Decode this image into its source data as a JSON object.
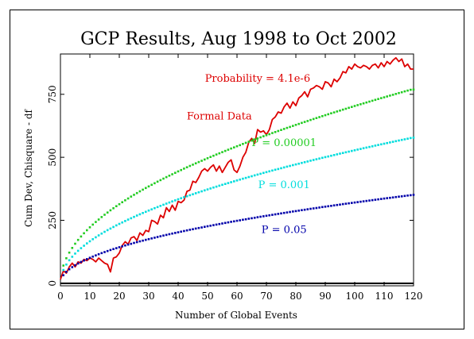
{
  "chart_data": {
    "type": "line",
    "title": "GCP Results, Aug 1998 to Oct 2002",
    "xlabel": "Number of Global Events",
    "ylabel": "Cum Dev, Chisquare - df",
    "xlim": [
      0,
      120
    ],
    "ylim": [
      -10,
      910
    ],
    "x_ticks": [
      0,
      10,
      20,
      30,
      40,
      50,
      60,
      70,
      80,
      90,
      100,
      110,
      120
    ],
    "y_ticks": [
      0,
      250,
      500,
      750
    ],
    "grid": false,
    "annotations": [
      {
        "text": "Probability = 4.1e-6",
        "color": "#dd0000",
        "x": 67,
        "y": 800
      },
      {
        "text": "Formal Data",
        "color": "#dd0000",
        "x": 54,
        "y": 650
      },
      {
        "text": "P = 0.00001",
        "color": "#22cc22",
        "x": 76,
        "y": 545
      },
      {
        "text": "P = 0.001",
        "color": "#00dddd",
        "x": 76,
        "y": 378
      },
      {
        "text": "P = 0.05",
        "color": "#0000aa",
        "x": 76,
        "y": 200
      }
    ],
    "series": [
      {
        "label_ref": "Formal Data",
        "style": "line",
        "color": "#dd0000",
        "x": [
          0,
          1,
          2,
          3,
          4,
          5,
          6,
          7,
          8,
          9,
          10,
          11,
          12,
          13,
          14,
          15,
          16,
          17,
          18,
          19,
          20,
          21,
          22,
          23,
          24,
          25,
          26,
          27,
          28,
          29,
          30,
          31,
          32,
          33,
          34,
          35,
          36,
          37,
          38,
          39,
          40,
          41,
          42,
          43,
          44,
          45,
          46,
          47,
          48,
          49,
          50,
          51,
          52,
          53,
          54,
          55,
          56,
          57,
          58,
          59,
          60,
          61,
          62,
          63,
          64,
          65,
          66,
          67,
          68,
          69,
          70,
          71,
          72,
          73,
          74,
          75,
          76,
          77,
          78,
          79,
          80,
          81,
          82,
          83,
          84,
          85,
          86,
          87,
          88,
          89,
          90,
          91,
          92,
          93,
          94,
          95,
          96,
          97,
          98,
          99,
          100,
          101,
          102,
          103,
          104,
          105,
          106,
          107,
          108,
          109,
          110,
          111,
          112,
          113,
          114,
          115,
          116,
          117,
          118,
          119,
          120
        ],
        "values": [
          15,
          50,
          40,
          65,
          80,
          65,
          85,
          80,
          95,
          90,
          100,
          95,
          85,
          100,
          90,
          80,
          75,
          45,
          100,
          105,
          120,
          150,
          165,
          155,
          180,
          185,
          170,
          200,
          190,
          210,
          205,
          250,
          245,
          235,
          270,
          260,
          300,
          285,
          310,
          290,
          325,
          320,
          330,
          365,
          370,
          405,
          400,
          420,
          445,
          455,
          445,
          460,
          470,
          445,
          465,
          440,
          460,
          480,
          490,
          450,
          440,
          465,
          500,
          520,
          560,
          575,
          555,
          610,
          600,
          605,
          590,
          610,
          650,
          660,
          680,
          675,
          700,
          715,
          695,
          720,
          705,
          735,
          745,
          760,
          740,
          770,
          775,
          785,
          780,
          770,
          800,
          795,
          780,
          810,
          800,
          815,
          840,
          835,
          860,
          850,
          870,
          860,
          855,
          865,
          860,
          850,
          865,
          870,
          855,
          875,
          860,
          880,
          870,
          885,
          895,
          880,
          890,
          860,
          870,
          850,
          850
        ]
      },
      {
        "label_ref": "P = 0.00001",
        "style": "dotted",
        "color": "#22cc22",
        "expected_curve": {
          "x_start": 1,
          "x_end": 120,
          "x_step": 1
        },
        "values": [
          70.2,
          99.3,
          121.6,
          140.4,
          157.0,
          172.0,
          185.8,
          198.6,
          210.7,
          222.1,
          232.9,
          243.2,
          253.1,
          262.7,
          271.9,
          280.8,
          289.5,
          297.9,
          306.0,
          314.0,
          321.7,
          329.3,
          336.7,
          344.0,
          351.1,
          358.0,
          364.8,
          371.5,
          378.1,
          384.6,
          390.9,
          397.2,
          403.3,
          409.4,
          415.3,
          421.2,
          427.0,
          432.7,
          438.4,
          444.0,
          449.5,
          454.9,
          460.3,
          465.6,
          470.9,
          476.1,
          481.2,
          486.3,
          491.4,
          496.4,
          501.3,
          506.2,
          511.1,
          515.9,
          520.7,
          525.4,
          530.1,
          534.7,
          539.3,
          543.9,
          548.4,
          552.9,
          557.4,
          561.8,
          566.2,
          570.6,
          574.9,
          579.2,
          583.5,
          587.7,
          591.9,
          596.1,
          600.2,
          604.4,
          608.5,
          612.5,
          616.6,
          620.6,
          624.6,
          628.6,
          632.5,
          636.4,
          640.3,
          644.2,
          648.1,
          651.9,
          655.7,
          659.5,
          663.3,
          667.0,
          670.8,
          674.5,
          678.2,
          681.8,
          685.5,
          689.1,
          692.7,
          696.3,
          699.9,
          703.5,
          707.0,
          710.5,
          714.0,
          717.5,
          721.0,
          724.5,
          727.9,
          731.3,
          734.7,
          738.1,
          741.5,
          744.9,
          748.2,
          751.6,
          754.9,
          758.2,
          761.5,
          764.8,
          768.0,
          769.0
        ]
      },
      {
        "label_ref": "P = 0.001",
        "style": "dotted",
        "color": "#00dddd",
        "expected_curve": {
          "x_start": 1,
          "x_end": 120,
          "x_step": 1
        },
        "values": [
          52.7,
          74.5,
          91.3,
          105.4,
          117.8,
          129.1,
          139.4,
          149.0,
          158.1,
          166.6,
          174.8,
          182.5,
          190.0,
          197.2,
          204.1,
          210.8,
          217.3,
          223.6,
          229.7,
          235.7,
          241.5,
          247.1,
          252.7,
          258.1,
          263.5,
          268.7,
          273.8,
          278.8,
          283.8,
          288.6,
          293.4,
          298.1,
          302.7,
          307.3,
          311.8,
          316.2,
          320.5,
          324.8,
          329.1,
          333.3,
          337.4,
          341.5,
          345.5,
          349.5,
          353.4,
          357.3,
          361.2,
          365.0,
          368.8,
          372.5,
          376.2,
          379.9,
          383.6,
          387.2,
          390.7,
          394.3,
          397.8,
          401.3,
          404.7,
          408.2,
          411.6,
          414.9,
          418.3,
          421.6,
          424.9,
          428.2,
          431.4,
          434.7,
          437.9,
          441.1,
          444.2,
          447.4,
          450.5,
          453.6,
          456.7,
          459.7,
          462.8,
          465.8,
          468.8,
          471.8,
          474.7,
          477.7,
          480.6,
          483.5,
          486.4,
          489.3,
          492.1,
          495.0,
          497.8,
          500.6,
          503.4,
          506.2,
          509.0,
          511.7,
          514.5,
          517.2,
          519.9,
          522.6,
          525.3,
          527.9,
          530.6,
          533.2,
          535.9,
          538.5,
          541.1,
          543.7,
          546.3,
          548.8,
          551.4,
          553.9,
          556.5,
          559.0,
          561.5,
          564.0,
          566.5,
          569.0,
          571.4,
          573.9,
          576.4,
          578.0
        ]
      },
      {
        "label_ref": "P = 0.05",
        "style": "dotted",
        "color": "#0000aa",
        "expected_curve": {
          "x_start": 1,
          "x_end": 120,
          "x_step": 1
        },
        "values": [
          32.0,
          45.3,
          55.4,
          64.0,
          71.6,
          78.4,
          84.7,
          90.5,
          96.0,
          101.2,
          106.1,
          110.8,
          115.4,
          119.8,
          124.0,
          128.0,
          132.0,
          135.8,
          139.5,
          143.1,
          146.7,
          150.1,
          153.5,
          156.8,
          160.0,
          163.2,
          166.3,
          169.3,
          172.3,
          175.3,
          178.2,
          181.0,
          183.9,
          186.6,
          189.4,
          192.0,
          194.7,
          197.3,
          199.9,
          202.4,
          204.9,
          207.4,
          209.9,
          212.3,
          214.7,
          217.1,
          219.4,
          221.7,
          224.0,
          226.3,
          228.6,
          230.8,
          233.0,
          235.2,
          237.4,
          239.5,
          241.7,
          243.8,
          245.9,
          248.0,
          250.0,
          252.1,
          254.1,
          256.1,
          258.1,
          260.1,
          262.1,
          264.1,
          266.0,
          268.0,
          269.9,
          271.8,
          273.7,
          275.6,
          277.4,
          279.3,
          281.1,
          283.0,
          284.8,
          286.6,
          288.4,
          290.2,
          291.9,
          293.7,
          295.5,
          297.2,
          298.9,
          300.6,
          302.4,
          304.1,
          305.7,
          307.4,
          309.1,
          310.8,
          312.4,
          314.1,
          315.7,
          317.3,
          318.9,
          320.5,
          322.1,
          323.7,
          325.3,
          326.9,
          328.5,
          330.0,
          331.6,
          333.1,
          334.7,
          336.2,
          337.7,
          339.2,
          340.7,
          342.2,
          343.7,
          345.2,
          346.7,
          348.2,
          349.6,
          351.0
        ]
      }
    ]
  }
}
